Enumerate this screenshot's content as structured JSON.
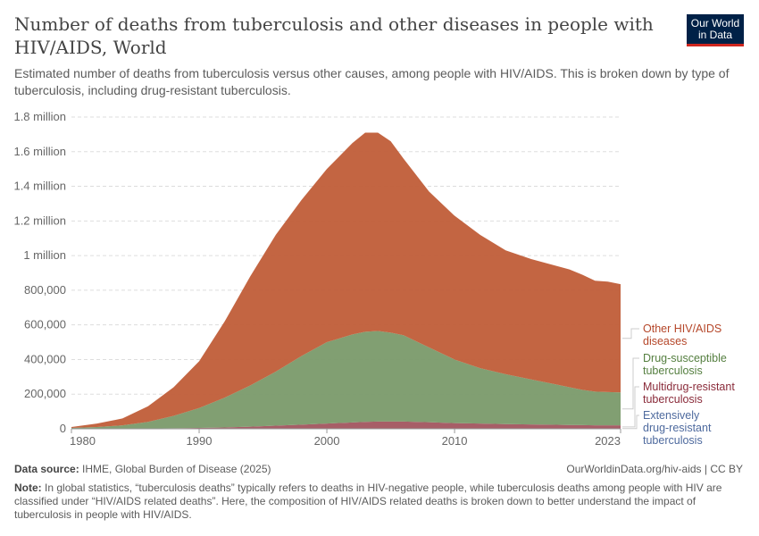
{
  "header": {
    "title": "Number of deaths from tuberculosis and other diseases in people with HIV/AIDS, World",
    "subtitle": "Estimated number of deaths from tuberculosis versus other causes, among people with HIV/AIDS. This is broken down by type of tuberculosis, including drug-resistant tuberculosis.",
    "logo": "Our World in Data"
  },
  "chart_data": {
    "type": "area",
    "stacked": true,
    "x": [
      1980,
      1982,
      1984,
      1986,
      1988,
      1990,
      1992,
      1994,
      1996,
      1998,
      2000,
      2002,
      2003,
      2004,
      2005,
      2006,
      2008,
      2010,
      2012,
      2014,
      2016,
      2018,
      2019,
      2020,
      2021,
      2022,
      2023
    ],
    "series": [
      {
        "name": "Extensively drug-resistant tuberculosis",
        "color": "#4C6A9C",
        "values": [
          0,
          0,
          0,
          0,
          0,
          0,
          0,
          0,
          0,
          0,
          0,
          0,
          0,
          0,
          0,
          1000,
          2000,
          2000,
          2000,
          2000,
          2000,
          2000,
          2000,
          2000,
          2000,
          2000,
          2000
        ]
      },
      {
        "name": "Multidrug-resistant tuberculosis",
        "color": "#A2555F",
        "values": [
          0,
          0,
          1000,
          2000,
          3000,
          5000,
          8000,
          12000,
          18000,
          24000,
          30000,
          37000,
          40000,
          42000,
          42000,
          41000,
          36000,
          31000,
          28000,
          25000,
          23000,
          21000,
          20000,
          19000,
          18000,
          18000,
          18000
        ]
      },
      {
        "name": "Drug-susceptible tuberculosis",
        "color": "#7A9A6A",
        "values": [
          5000,
          10000,
          19000,
          38000,
          72000,
          115000,
          172000,
          238000,
          312000,
          396000,
          470000,
          508000,
          520000,
          523000,
          513000,
          498000,
          432000,
          367000,
          320000,
          288000,
          260000,
          232000,
          218000,
          204000,
          195000,
          192000,
          190000
        ]
      },
      {
        "name": "Other HIV/AIDS diseases",
        "color": "#C05D38",
        "values": [
          5000,
          20000,
          40000,
          90000,
          165000,
          270000,
          440000,
          630000,
          790000,
          900000,
          1000000,
          1105000,
          1150000,
          1145000,
          1105000,
          1020000,
          900000,
          830000,
          770000,
          715000,
          695000,
          685000,
          680000,
          665000,
          640000,
          638000,
          625000
        ]
      }
    ],
    "legend_labels": [
      {
        "text": [
          "Other HIV/AIDS",
          "diseases"
        ],
        "color": "#B5472A"
      },
      {
        "text": [
          "Drug-susceptible",
          "tuberculosis"
        ],
        "color": "#557F40"
      },
      {
        "text": [
          "Multidrug-resistant",
          "tuberculosis"
        ],
        "color": "#8A2B3A"
      },
      {
        "text": [
          "Extensively",
          "drug-resistant",
          "tuberculosis"
        ],
        "color": "#4E6A9E"
      }
    ],
    "legend_placement": "right",
    "ylim": [
      0,
      1800000
    ],
    "yticks": [
      0,
      200000,
      400000,
      600000,
      800000,
      1000000,
      1200000,
      1400000,
      1600000,
      1800000
    ],
    "ytick_labels": [
      "0",
      "200,000",
      "400,000",
      "600,000",
      "800,000",
      "1 million",
      "1.2 million",
      "1.4 million",
      "1.6 million",
      "1.8 million"
    ],
    "xticks": [
      1980,
      1990,
      2000,
      2010,
      2023
    ],
    "xtick_labels": [
      "1980",
      "1990",
      "2000",
      "2010",
      "2023"
    ],
    "grid": "horizontal dashed"
  },
  "footer": {
    "source_label": "Data source:",
    "source": "IHME, Global Burden of Disease (2025)",
    "url": "OurWorldinData.org/hiv-aids | CC BY",
    "note_label": "Note:",
    "note": "In global statistics, “tuberculosis deaths” typically refers to deaths in HIV-negative people, while tuberculosis deaths among people with HIV are classified under “HIV/AIDS related deaths”. Here, the composition of HIV/AIDS related deaths is broken down to better understand the impact of tuberculosis in people with HIV/AIDS."
  }
}
